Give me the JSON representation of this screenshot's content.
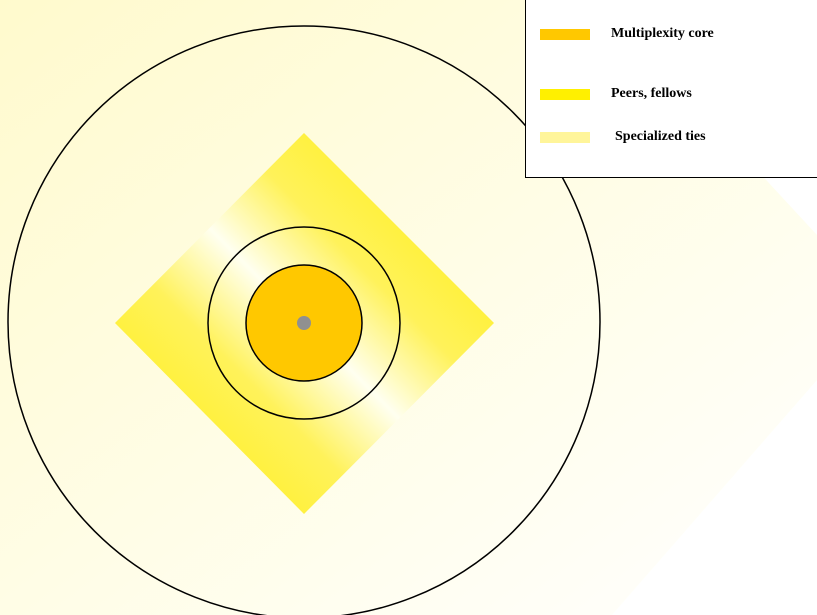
{
  "diagram": {
    "title": "",
    "colors": {
      "background": "#FFFACD",
      "background_light": "#FFFFF5",
      "diamond": "#FFEE00",
      "diamond_light": "#FFFFF0",
      "inner_circle": "#FFC800",
      "center_dot": "#909090",
      "outline": "#000000"
    }
  },
  "legend": {
    "items": [
      {
        "label": "Multiplexity core",
        "color": "#FFC800"
      },
      {
        "label": "Peers, fellows",
        "color": "#FFF000"
      },
      {
        "label": "Specialized ties",
        "color": "#FFF59A"
      }
    ]
  }
}
